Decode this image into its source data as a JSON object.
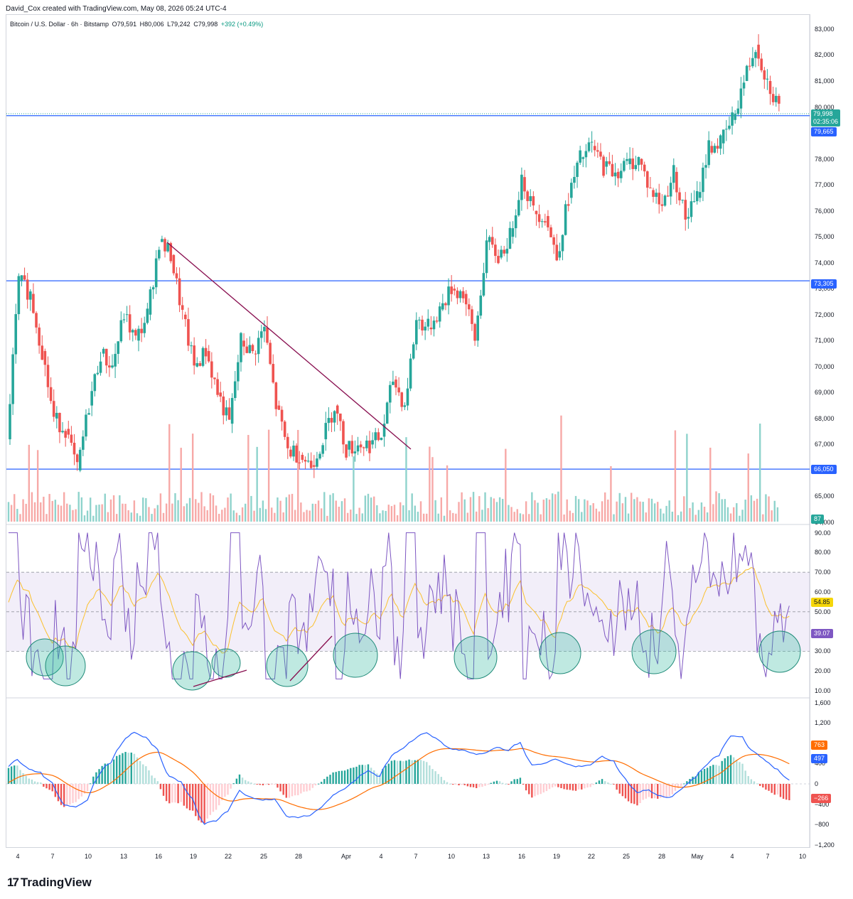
{
  "header": {
    "credit": "David_Cox created with TradingView.com, May 08, 2026 05:24 UTC-4"
  },
  "symbol_bar": {
    "title": "Bitcoin / U.S. Dollar · 6h · Bitstamp",
    "open": "O79,591",
    "high": "H80,006",
    "low": "L79,242",
    "close": "C79,998",
    "change": "+392 (+0.49%)"
  },
  "colors": {
    "up": "#26a69a",
    "down": "#ef5350",
    "level_line": "#2962ff",
    "trendline": "#880e4f",
    "rsi_line": "#7e57c2",
    "rsi_ma": "#fbc02d",
    "macd_line": "#2962ff",
    "signal_line": "#ff6d00",
    "oversold_marker": "#2bb59a"
  },
  "price_axis": {
    "ticks": [
      "83,000",
      "82,000",
      "81,000",
      "80,000",
      "79,000",
      "78,000",
      "77,000",
      "76,000",
      "75,000",
      "74,000",
      "73,000",
      "72,000",
      "71,000",
      "70,000",
      "69,000",
      "68,000",
      "67,000",
      "66,000",
      "65,000",
      "64,000"
    ],
    "last_price": "79,998",
    "countdown": "02:35:06",
    "level_high": "79,665",
    "level_mid": "73,305",
    "level_low": "66,050",
    "volume_value": "87"
  },
  "rsi_axis": {
    "ticks": [
      "90.00",
      "80.00",
      "70.00",
      "60.00",
      "50.00",
      "40.00",
      "30.00",
      "20.00",
      "10.00"
    ],
    "ma_value": "54.85",
    "rsi_value": "39.07"
  },
  "macd_axis": {
    "ticks": [
      "1,600",
      "1,200",
      "800",
      "400",
      "0",
      "−400",
      "−800",
      "−1,200"
    ],
    "signal_value": "763",
    "macd_value": "497",
    "hist_value": "−266"
  },
  "date_axis": [
    "4",
    "7",
    "10",
    "13",
    "16",
    "19",
    "22",
    "25",
    "28",
    "Apr",
    "4",
    "7",
    "10",
    "13",
    "16",
    "19",
    "22",
    "25",
    "28",
    "May",
    "4",
    "7",
    "10"
  ],
  "chart_data": {
    "type": "line",
    "title": "Bitcoin / U.S. Dollar · 6h · Bitstamp",
    "ohlc_last": {
      "open": 79591,
      "high": 80006,
      "low": 79242,
      "close": 79998
    },
    "ylim": [
      64000,
      83300
    ],
    "horizontal_levels": [
      79665,
      73305,
      66050
    ],
    "price_path": [
      {
        "x": "Mar 3",
        "y": 67200
      },
      {
        "x": "Mar 4",
        "y": 73300
      },
      {
        "x": "Mar 5",
        "y": 72800
      },
      {
        "x": "Mar 6",
        "y": 70600
      },
      {
        "x": "Mar 7",
        "y": 68000
      },
      {
        "x": "Mar 8",
        "y": 67600
      },
      {
        "x": "Mar 9",
        "y": 66000
      },
      {
        "x": "Mar 10",
        "y": 68500
      },
      {
        "x": "Mar 11",
        "y": 70500
      },
      {
        "x": "Mar 12",
        "y": 70000
      },
      {
        "x": "Mar 13",
        "y": 72000
      },
      {
        "x": "Mar 14",
        "y": 71000
      },
      {
        "x": "Mar 15",
        "y": 72000
      },
      {
        "x": "Mar 16",
        "y": 74800
      },
      {
        "x": "Mar 17",
        "y": 74300
      },
      {
        "x": "Mar 18",
        "y": 72000
      },
      {
        "x": "Mar 19",
        "y": 70000
      },
      {
        "x": "Mar 20",
        "y": 70600
      },
      {
        "x": "Mar 21",
        "y": 69000
      },
      {
        "x": "Mar 22",
        "y": 67800
      },
      {
        "x": "Mar 23",
        "y": 71000
      },
      {
        "x": "Mar 24",
        "y": 70500
      },
      {
        "x": "Mar 25",
        "y": 71500
      },
      {
        "x": "Mar 26",
        "y": 68500
      },
      {
        "x": "Mar 27",
        "y": 66800
      },
      {
        "x": "Mar 28",
        "y": 66600
      },
      {
        "x": "Mar 29",
        "y": 66200
      },
      {
        "x": "Mar 30",
        "y": 67200
      },
      {
        "x": "Mar 31",
        "y": 68500
      },
      {
        "x": "Apr 1",
        "y": 66800
      },
      {
        "x": "Apr 2",
        "y": 67000
      },
      {
        "x": "Apr 3",
        "y": 67000
      },
      {
        "x": "Apr 4",
        "y": 67300
      },
      {
        "x": "Apr 5",
        "y": 69500
      },
      {
        "x": "Apr 6",
        "y": 68500
      },
      {
        "x": "Apr 7",
        "y": 71800
      },
      {
        "x": "Apr 8",
        "y": 71500
      },
      {
        "x": "Apr 9",
        "y": 72200
      },
      {
        "x": "Apr 10",
        "y": 73000
      },
      {
        "x": "Apr 11",
        "y": 72800
      },
      {
        "x": "Apr 12",
        "y": 71000
      },
      {
        "x": "Apr 13",
        "y": 74800
      },
      {
        "x": "Apr 14",
        "y": 74200
      },
      {
        "x": "Apr 15",
        "y": 75000
      },
      {
        "x": "Apr 16",
        "y": 77300
      },
      {
        "x": "Apr 17",
        "y": 76000
      },
      {
        "x": "Apr 18",
        "y": 75800
      },
      {
        "x": "Apr 19",
        "y": 74200
      },
      {
        "x": "Apr 20",
        "y": 76500
      },
      {
        "x": "Apr 21",
        "y": 78000
      },
      {
        "x": "Apr 22",
        "y": 78500
      },
      {
        "x": "Apr 23",
        "y": 77700
      },
      {
        "x": "Apr 24",
        "y": 77500
      },
      {
        "x": "Apr 25",
        "y": 77800
      },
      {
        "x": "Apr 26",
        "y": 78000
      },
      {
        "x": "Apr 27",
        "y": 76800
      },
      {
        "x": "Apr 28",
        "y": 76200
      },
      {
        "x": "Apr 29",
        "y": 77500
      },
      {
        "x": "Apr 30",
        "y": 75700
      },
      {
        "x": "May 1",
        "y": 76500
      },
      {
        "x": "May 2",
        "y": 78500
      },
      {
        "x": "May 3",
        "y": 78600
      },
      {
        "x": "May 4",
        "y": 79500
      },
      {
        "x": "May 5",
        "y": 81000
      },
      {
        "x": "May 6",
        "y": 82400
      },
      {
        "x": "May 7",
        "y": 81000
      },
      {
        "x": "May 8",
        "y": 79998
      }
    ]
  }
}
